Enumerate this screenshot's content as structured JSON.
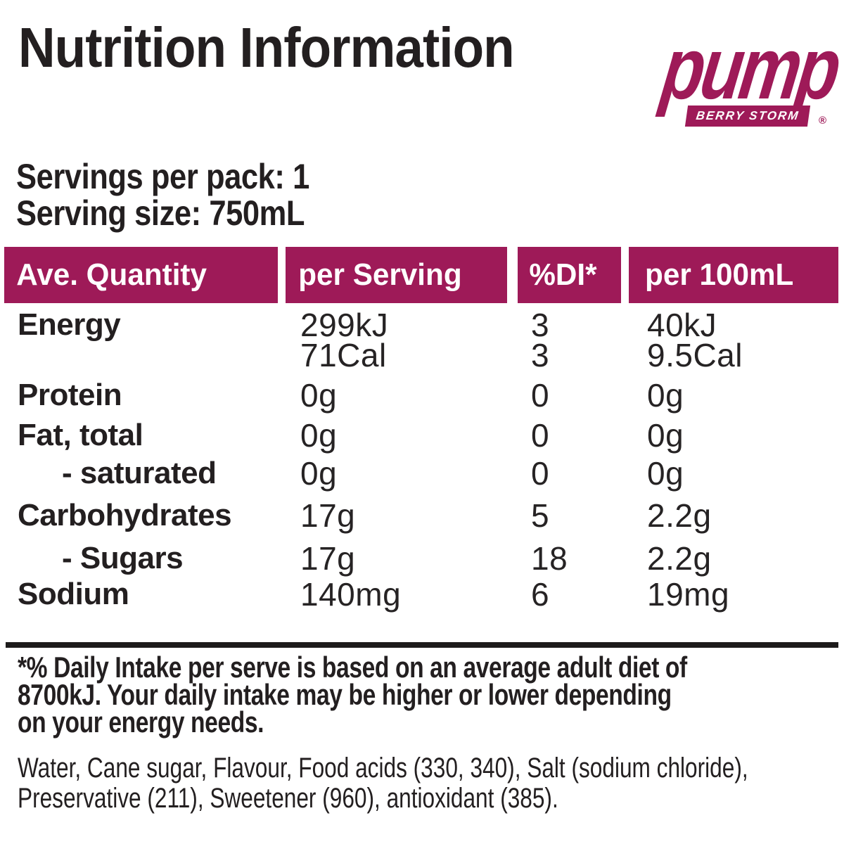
{
  "title": "Nutrition Information",
  "brand": {
    "name": "pump",
    "variant": "BERRY STORM",
    "registered_mark": "®"
  },
  "serving_info": {
    "servings_per_pack": "Servings per pack: 1",
    "serving_size": "Serving size: 750mL"
  },
  "table": {
    "headers": {
      "ave_quantity": "Ave. Quantity",
      "per_serving": "per Serving",
      "di": "%DI*",
      "per_100ml": "per 100mL"
    },
    "rows": [
      {
        "label": "Energy",
        "per_serving": "299kJ",
        "di": "3",
        "per_100ml": "40kJ"
      },
      {
        "label": "",
        "per_serving": "71Cal",
        "di": "3",
        "per_100ml": "9.5Cal"
      },
      {
        "label": "Protein",
        "per_serving": "0g",
        "di": "0",
        "per_100ml": "0g"
      },
      {
        "label": "Fat, total",
        "per_serving": "0g",
        "di": "0",
        "per_100ml": "0g"
      },
      {
        "label": "- saturated",
        "per_serving": "0g",
        "di": "0",
        "per_100ml": "0g"
      },
      {
        "label": "Carbohydrates",
        "per_serving": "17g",
        "di": "5",
        "per_100ml": "2.2g"
      },
      {
        "label": "- Sugars",
        "per_serving": "17g",
        "di": "18",
        "per_100ml": "2.2g"
      },
      {
        "label": "Sodium",
        "per_serving": "140mg",
        "di": "6",
        "per_100ml": "19mg"
      }
    ]
  },
  "footnote": {
    "lines": [
      "*% Daily Intake per serve is based on an average adult diet of",
      "8700kJ. Your daily intake may be higher or lower depending",
      "on your energy needs."
    ]
  },
  "ingredients": {
    "lines": [
      "Water, Cane sugar, Flavour, Food acids (330, 340), Salt (sodium chloride),",
      "Preservative (211), Sweetener (960), antioxidant (385)."
    ]
  },
  "colors": {
    "accent": "#9E1A58",
    "text": "#231F20",
    "divider": "#1D1B1B"
  }
}
